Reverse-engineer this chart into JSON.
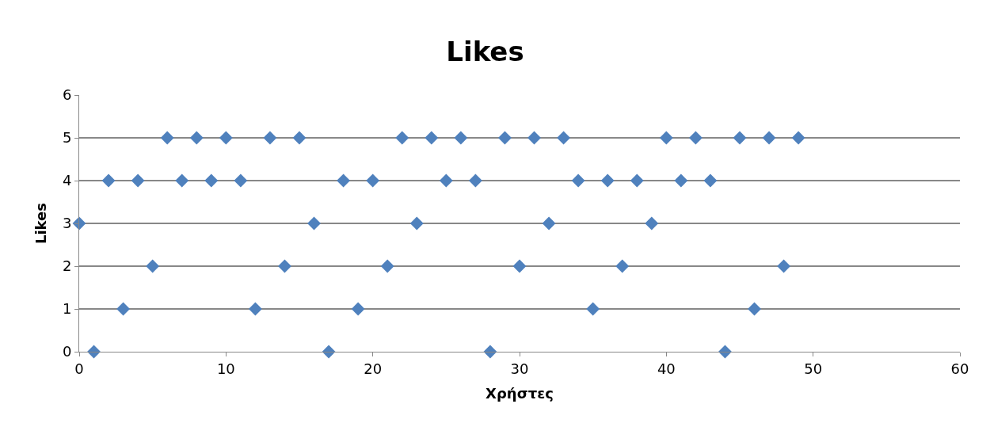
{
  "chart_data": {
    "type": "scatter",
    "title": "Likes",
    "xlabel": "Χρήστες",
    "ylabel": "Likes",
    "x": [
      0,
      1,
      2,
      3,
      4,
      5,
      6,
      7,
      8,
      9,
      10,
      11,
      12,
      13,
      14,
      15,
      16,
      17,
      18,
      19,
      20,
      21,
      22,
      23,
      24,
      25,
      26,
      27,
      28,
      29,
      30,
      31,
      32,
      33,
      34,
      35,
      36,
      37,
      38,
      39,
      40,
      41,
      42,
      43,
      44,
      45,
      46,
      47,
      48,
      49
    ],
    "values": [
      3,
      0,
      4,
      1,
      4,
      2,
      5,
      4,
      5,
      4,
      5,
      4,
      1,
      5,
      2,
      5,
      3,
      0,
      4,
      1,
      4,
      2,
      5,
      3,
      5,
      4,
      5,
      4,
      0,
      5,
      2,
      5,
      3,
      5,
      4,
      1,
      4,
      2,
      4,
      3,
      5,
      4,
      5,
      4,
      0,
      5,
      1,
      5,
      2,
      5
    ],
    "color": "#4f81bd",
    "marker": "diamond",
    "xlim": [
      0,
      60
    ],
    "xticks": [
      0,
      10,
      20,
      30,
      40,
      50,
      60
    ],
    "ylim": [
      0,
      6
    ],
    "yticks": [
      0,
      1,
      2,
      3,
      4,
      5,
      6
    ],
    "grid": "y",
    "legend": false
  }
}
